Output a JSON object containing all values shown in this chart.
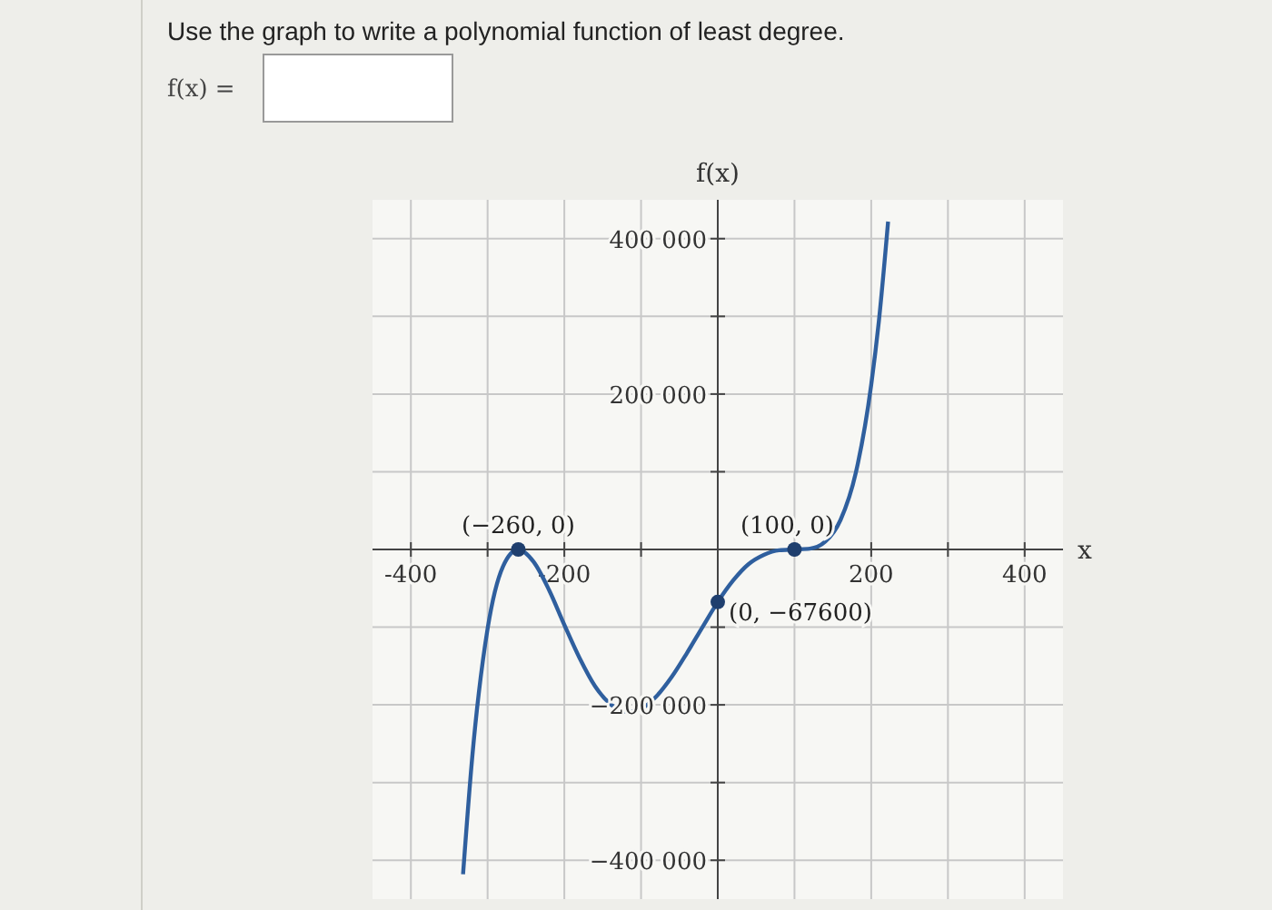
{
  "chart_data": {
    "type": "line",
    "title": "Use the graph to write a polynomial function of least degree.",
    "xlabel": "x",
    "ylabel": "f(x)",
    "annotations": [
      "f(x) =",
      {
        "text": "(−260, 0)",
        "x": -260,
        "y": 0
      },
      {
        "text": "(100, 0)",
        "x": 100,
        "y": 0
      },
      {
        "text": "(0, −67600)",
        "x": 0,
        "y": -67600
      }
    ],
    "xlim": [
      -450,
      450
    ],
    "ylim": [
      -450000,
      450000
    ],
    "xticks": [
      {
        "value": -400,
        "label": "-400"
      },
      {
        "value": -300,
        "label": null
      },
      {
        "value": -200,
        "label": "-200"
      },
      {
        "value": -100,
        "label": null
      },
      {
        "value": 100,
        "label": null
      },
      {
        "value": 200,
        "label": "200"
      },
      {
        "value": 300,
        "label": null
      },
      {
        "value": 400,
        "label": "400"
      }
    ],
    "yticks": [
      {
        "value": -400000,
        "label": "−400 000"
      },
      {
        "value": -300000,
        "label": null
      },
      {
        "value": -200000,
        "label": "−200 000"
      },
      {
        "value": -100000,
        "label": null
      },
      {
        "value": 100000,
        "label": null
      },
      {
        "value": 200000,
        "label": "200 000"
      },
      {
        "value": 300000,
        "label": null
      },
      {
        "value": 400000,
        "label": "400 000"
      }
    ],
    "grid": true,
    "series": [
      {
        "color": "#2f5f9e",
        "marker": "none",
        "x": [
          -332,
          -320,
          -300,
          -280,
          -260,
          -240,
          -220,
          -200,
          -180,
          -160,
          -140,
          -120,
          -100,
          -80,
          -60,
          -40,
          -20,
          0,
          20,
          40,
          60,
          80,
          100,
          120,
          140,
          160,
          180,
          200,
          210,
          222
        ],
        "values": [
          -418000,
          -267000,
          -102000,
          -22000,
          0,
          -16000,
          -52000,
          -97000,
          -140000,
          -176000,
          -199000,
          -209000,
          -205000,
          -189000,
          -164000,
          -133000,
          -100000,
          -67600,
          -40000,
          -19000,
          -7000,
          -1000,
          0,
          1000,
          10000,
          38000,
          99000,
          212000,
          294000,
          422000
        ]
      },
      {
        "type": "scatter",
        "color": "#1f3f6e",
        "marker": "circle",
        "x": [
          -260,
          0,
          100
        ],
        "values": [
          0,
          -67600,
          0
        ]
      }
    ]
  }
}
